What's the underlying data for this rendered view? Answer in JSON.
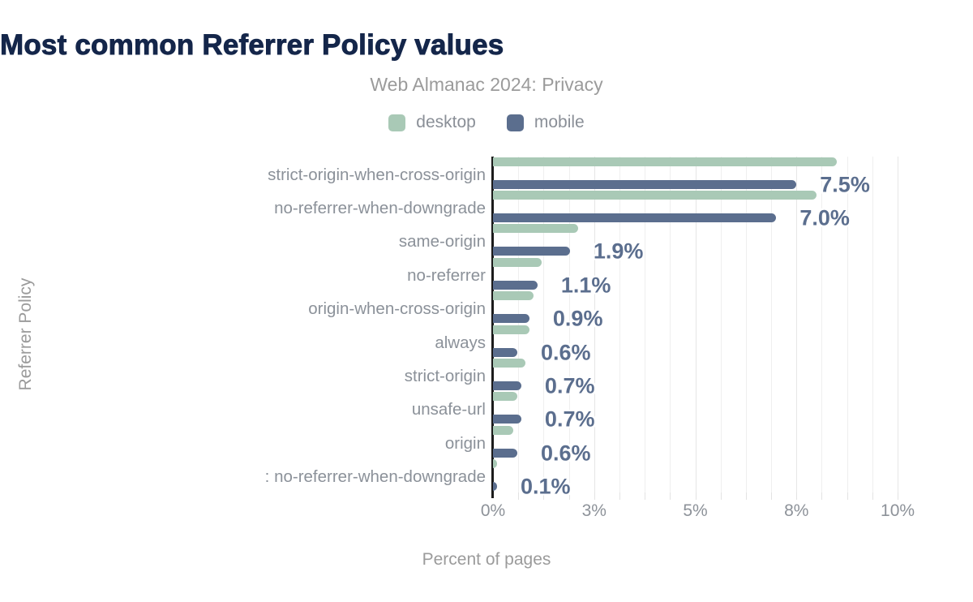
{
  "header": {
    "title": "Most common Referrer Policy values",
    "subtitle": "Web Almanac 2024: Privacy"
  },
  "chart_data": {
    "type": "bar",
    "orientation": "horizontal",
    "title": "Most common Referrer Policy values",
    "subtitle": "Web Almanac 2024: Privacy",
    "xlabel": "Percent of pages",
    "ylabel": "Referrer Policy",
    "legend_position": "top",
    "grid": true,
    "axis_max_percent": 10.5,
    "minor_grid_step_percent": 0.625,
    "x_ticks": [
      {
        "label": "0%",
        "value": 0
      },
      {
        "label": "3%",
        "value": 2.5
      },
      {
        "label": "5%",
        "value": 5
      },
      {
        "label": "8%",
        "value": 7.5
      },
      {
        "label": "10%",
        "value": 10
      }
    ],
    "categories": [
      "strict-origin-when-cross-origin",
      "no-referrer-when-downgrade",
      "same-origin",
      "no-referrer",
      "origin-when-cross-origin",
      "always",
      "strict-origin",
      "unsafe-url",
      "origin",
      ": no-referrer-when-downgrade"
    ],
    "series": [
      {
        "name": "desktop",
        "color": "#a9c9b6",
        "values": [
          8.5,
          8.0,
          2.1,
          1.2,
          1.0,
          0.9,
          0.8,
          0.6,
          0.5,
          0.1
        ]
      },
      {
        "name": "mobile",
        "color": "#5b6e8e",
        "values": [
          7.5,
          7.0,
          1.9,
          1.1,
          0.9,
          0.6,
          0.7,
          0.7,
          0.6,
          0.1
        ]
      }
    ],
    "data_labels": [
      "7.5%",
      "7.0%",
      "1.9%",
      "1.1%",
      "0.9%",
      "0.6%",
      "0.7%",
      "0.7%",
      "0.6%",
      "0.1%"
    ],
    "data_label_series": "mobile"
  },
  "colors": {
    "title": "#14264a",
    "subtitle": "#9b9b9b",
    "desktop_bar": "#a9c9b6",
    "mobile_bar": "#5b6e8e",
    "data_label": "#5b6e8e",
    "axis_line": "#1b1b1b",
    "gridline": "#efefef",
    "background": "#ffffff"
  }
}
